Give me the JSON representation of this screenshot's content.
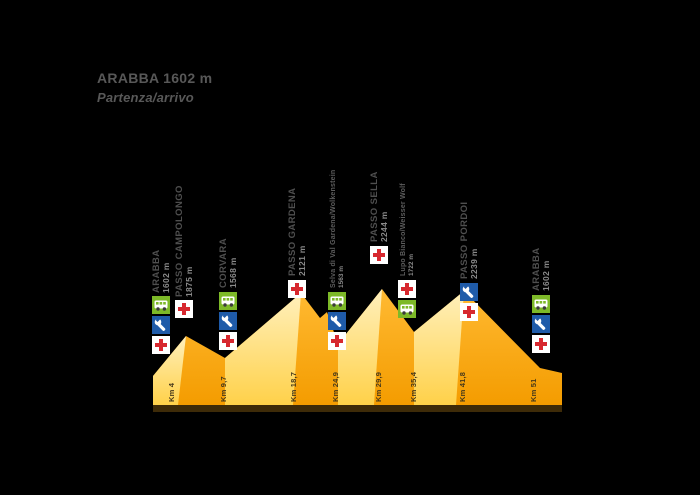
{
  "title": {
    "name": "ARABBA 1602 m",
    "subtitle": "Partenza/arrivo"
  },
  "colors": {
    "background": "#000000",
    "mountain_orange_top": "#FFBA33",
    "mountain_orange_bottom": "#F49C00",
    "mountain_light_top": "#FFF0BC",
    "mountain_light_bottom": "#FFD149",
    "base_strip": "#3E2B08",
    "icon_green": "#7DB928",
    "icon_blue": "#1F5BA9",
    "cross_red": "#D7282F",
    "label_text": "#4F4F4F",
    "elevation_text": "#8A8A8A",
    "km_text": "#46391B"
  },
  "chart_data": {
    "type": "area",
    "title": "ARABBA 1602 m — Partenza/arrivo",
    "xlabel": "Km",
    "ylabel": "m",
    "x_range_km": [
      0,
      51
    ],
    "grid": false,
    "legend": false,
    "waypoints": [
      {
        "name": "ARABBA",
        "elevation": "1602 m",
        "elevation_m": 1602,
        "km": 0,
        "km_label": "",
        "style": "big",
        "services": [
          "bus",
          "wrench",
          "medical"
        ]
      },
      {
        "name": "PASSO CAMPOLONGO",
        "elevation": "1875 m",
        "elevation_m": 1875,
        "km": 4,
        "km_label": "Km 4",
        "style": "big",
        "services": [
          "medical"
        ]
      },
      {
        "name": "CORVARA",
        "elevation": "1568 m",
        "elevation_m": 1568,
        "km": 9.7,
        "km_label": "Km 9,7",
        "style": "big",
        "services": [
          "bus",
          "wrench",
          "medical"
        ]
      },
      {
        "name": "PASSO GARDENA",
        "elevation": "2121 m",
        "elevation_m": 2121,
        "km": 18.7,
        "km_label": "Km 18,7",
        "style": "big",
        "services": [
          "medical"
        ]
      },
      {
        "name": "Selva di Val Gardena/Wolkenstein",
        "elevation": "1563 m",
        "elevation_m": 1563,
        "km": 24.9,
        "km_label": "Km 24,9",
        "style": "small",
        "services": [
          "bus",
          "wrench",
          "medical"
        ]
      },
      {
        "name": "PASSO SELLA",
        "elevation": "2244 m",
        "elevation_m": 2244,
        "km": 29.9,
        "km_label": "Km 29,9",
        "style": "big",
        "services": [
          "medical"
        ]
      },
      {
        "name": "Lupo Bianco/Weisser Wolf",
        "elevation": "1722 m",
        "elevation_m": 1722,
        "km": 35.4,
        "km_label": "Km 35,4",
        "style": "small",
        "services": [
          "medical",
          "bus"
        ]
      },
      {
        "name": "PASSO PORDOI",
        "elevation": "2239 m",
        "elevation_m": 2239,
        "km": 41.8,
        "km_label": "Km 41,8",
        "style": "big",
        "services": [
          "wrench",
          "medical"
        ]
      },
      {
        "name": "ARABBA",
        "elevation": "1602 m",
        "elevation_m": 1602,
        "km": 51,
        "km_label": "Km 51",
        "style": "big",
        "services": [
          "bus",
          "wrench",
          "medical"
        ]
      }
    ]
  }
}
